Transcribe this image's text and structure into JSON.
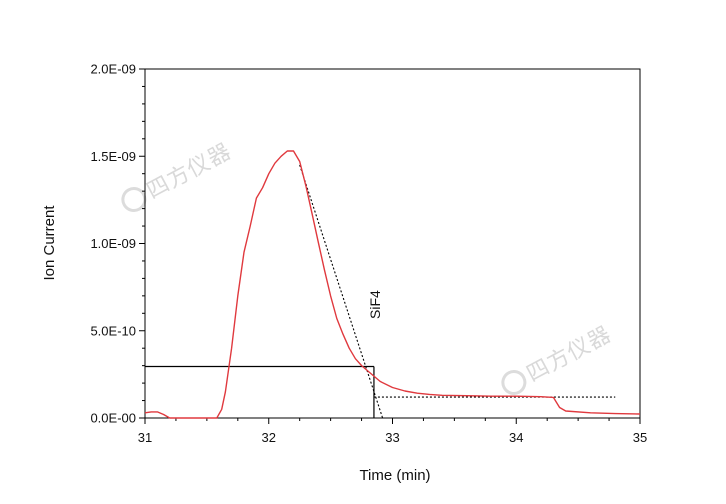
{
  "chart_data": {
    "type": "line",
    "title": "",
    "xlabel": "Time (min)",
    "ylabel": "Ion Current",
    "xlim": [
      31,
      35
    ],
    "ylim": [
      0,
      2e-09
    ],
    "grid": false,
    "x_ticks": [
      31,
      32,
      33,
      34,
      35
    ],
    "x_tick_labels": [
      "31",
      "32",
      "33",
      "34",
      "35"
    ],
    "y_ticks": [
      0,
      5e-10,
      1e-09,
      1.5e-09,
      2e-09
    ],
    "y_tick_labels": [
      "0.0E-00",
      "5.0E-10",
      "1.0E-09",
      "1.5E-09",
      "2.0E-09"
    ],
    "colors": {
      "series": "#e0393e",
      "guide": "#000000"
    },
    "series": [
      {
        "x": [
          31.0,
          31.05,
          31.1,
          31.15,
          31.2,
          31.3,
          31.5,
          31.58,
          31.62,
          31.65,
          31.7,
          31.75,
          31.8,
          31.85,
          31.9,
          31.95,
          32.0,
          32.05,
          32.1,
          32.15,
          32.2,
          32.25,
          32.3,
          32.35,
          32.4,
          32.45,
          32.5,
          32.55,
          32.6,
          32.65,
          32.7,
          32.75,
          32.8,
          32.85,
          32.9,
          33.0,
          33.1,
          33.2,
          33.3,
          33.4,
          33.6,
          33.8,
          34.0,
          34.2,
          34.3,
          34.35,
          34.4,
          34.6,
          34.8,
          35.0
        ],
        "y": [
          3e-11,
          3.5e-11,
          3.5e-11,
          2e-11,
          0,
          0,
          0,
          0,
          5e-11,
          1.5e-10,
          4e-10,
          7e-10,
          9.5e-10,
          1.1e-09,
          1.26e-09,
          1.32e-09,
          1.4e-09,
          1.46e-09,
          1.5e-09,
          1.53e-09,
          1.53e-09,
          1.47e-09,
          1.33e-09,
          1.17e-09,
          1.01e-09,
          8.5e-10,
          7e-10,
          5.7e-10,
          4.8e-10,
          4e-10,
          3.4e-10,
          3e-10,
          2.7e-10,
          2.4e-10,
          2.1e-10,
          1.75e-10,
          1.55e-10,
          1.42e-10,
          1.35e-10,
          1.3e-10,
          1.28e-10,
          1.25e-10,
          1.25e-10,
          1.22e-10,
          1.18e-10,
          6e-11,
          4e-11,
          3e-11,
          2.5e-11,
          2.3e-11
        ]
      }
    ],
    "guides": {
      "tangent": {
        "x": [
          32.25,
          32.92
        ],
        "y": [
          1.45e-09,
          0
        ]
      },
      "baseline": {
        "x": [
          32.85,
          34.8
        ],
        "y": [
          1.2e-10,
          1.2e-10
        ]
      },
      "horizontal": {
        "x": [
          31,
          32.85
        ],
        "y": [
          2.95e-10,
          2.95e-10
        ]
      },
      "vertical": {
        "x": [
          32.85,
          32.85
        ],
        "y": [
          2.95e-10,
          0
        ]
      }
    },
    "annotations": [
      {
        "text": "SiF4",
        "x": 32.9,
        "y": 6.5e-10
      }
    ]
  },
  "watermarks": [
    "四方仪器",
    "四方仪器"
  ]
}
